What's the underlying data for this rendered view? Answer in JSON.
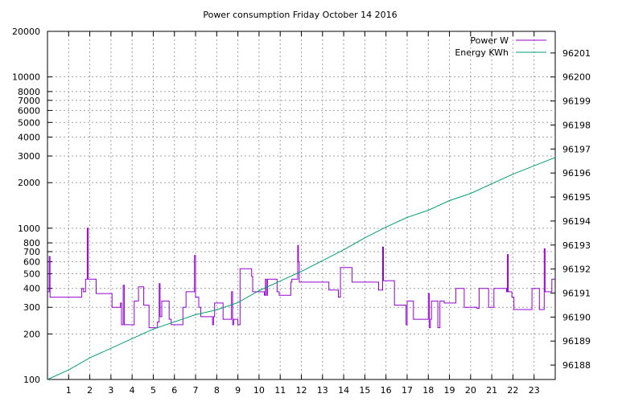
{
  "chart_data": {
    "type": "line",
    "title": "Power consumption Friday October 14 2016",
    "x_axis": {
      "range": [
        0,
        24
      ],
      "ticks": [
        1,
        2,
        3,
        4,
        5,
        6,
        7,
        8,
        9,
        10,
        11,
        12,
        13,
        14,
        15,
        16,
        17,
        18,
        19,
        20,
        21,
        22,
        23
      ],
      "grid": true
    },
    "y_axis_left": {
      "scale": "log",
      "range": [
        100,
        20000
      ],
      "ticks": [
        {
          "value": 100,
          "label": "100"
        },
        {
          "value": 200,
          "label": "200"
        },
        {
          "value": 300,
          "label": "300"
        },
        {
          "value": 400,
          "label": "400"
        },
        {
          "value": 500,
          "label": "500"
        },
        {
          "value": 600,
          "label": "600"
        },
        {
          "value": 700,
          "label": "700"
        },
        {
          "value": 800,
          "label": "800"
        },
        {
          "value": 1000,
          "label": "1000"
        },
        {
          "value": 2000,
          "label": "2000"
        },
        {
          "value": 3000,
          "label": "3000"
        },
        {
          "value": 4000,
          "label": "4000"
        },
        {
          "value": 5000,
          "label": "5000"
        },
        {
          "value": 6000,
          "label": "6000"
        },
        {
          "value": 7000,
          "label": "7000"
        },
        {
          "value": 8000,
          "label": "8000"
        },
        {
          "value": 10000,
          "label": "10000"
        },
        {
          "value": 20000,
          "label": "20000"
        }
      ],
      "grid": true
    },
    "y_axis_right": {
      "scale": "linear",
      "range": [
        96187.4,
        96201.9
      ],
      "ticks": [
        96188,
        96189,
        96190,
        96191,
        96192,
        96193,
        96194,
        96195,
        96196,
        96197,
        96198,
        96199,
        96200,
        96201
      ]
    },
    "legend_position": "top-right",
    "series": [
      {
        "name": "Power W",
        "color": "#9400d3",
        "axis": "left",
        "step": true,
        "points": [
          [
            0.0,
            380
          ],
          [
            0.08,
            650
          ],
          [
            0.12,
            350
          ],
          [
            0.25,
            350
          ],
          [
            0.95,
            350
          ],
          [
            1.55,
            350
          ],
          [
            1.62,
            400
          ],
          [
            1.7,
            380
          ],
          [
            1.8,
            460
          ],
          [
            1.88,
            1000
          ],
          [
            1.92,
            460
          ],
          [
            2.0,
            460
          ],
          [
            2.15,
            460
          ],
          [
            2.3,
            370
          ],
          [
            2.6,
            370
          ],
          [
            3.0,
            370
          ],
          [
            3.05,
            300
          ],
          [
            3.4,
            300
          ],
          [
            3.45,
            320
          ],
          [
            3.5,
            230
          ],
          [
            3.58,
            420
          ],
          [
            3.63,
            230
          ],
          [
            3.8,
            230
          ],
          [
            4.05,
            230
          ],
          [
            4.1,
            330
          ],
          [
            4.2,
            330
          ],
          [
            4.3,
            410
          ],
          [
            4.45,
            410
          ],
          [
            4.55,
            310
          ],
          [
            4.7,
            310
          ],
          [
            4.8,
            220
          ],
          [
            5.1,
            220
          ],
          [
            5.2,
            240
          ],
          [
            5.28,
            430
          ],
          [
            5.32,
            260
          ],
          [
            5.4,
            330
          ],
          [
            5.7,
            330
          ],
          [
            5.75,
            250
          ],
          [
            5.85,
            230
          ],
          [
            6.2,
            230
          ],
          [
            6.3,
            230
          ],
          [
            6.4,
            300
          ],
          [
            6.55,
            380
          ],
          [
            6.9,
            380
          ],
          [
            6.95,
            660
          ],
          [
            7.0,
            350
          ],
          [
            7.15,
            300
          ],
          [
            7.25,
            260
          ],
          [
            7.45,
            260
          ],
          [
            7.75,
            260
          ],
          [
            7.8,
            230
          ],
          [
            7.85,
            260
          ],
          [
            7.9,
            320
          ],
          [
            8.2,
            320
          ],
          [
            8.3,
            250
          ],
          [
            8.65,
            250
          ],
          [
            8.7,
            380
          ],
          [
            8.75,
            230
          ],
          [
            8.8,
            250
          ],
          [
            9.0,
            230
          ],
          [
            9.1,
            540
          ],
          [
            9.6,
            540
          ],
          [
            9.65,
            480
          ],
          [
            9.7,
            380
          ],
          [
            10.05,
            380
          ],
          [
            10.25,
            360
          ],
          [
            10.3,
            460
          ],
          [
            10.35,
            360
          ],
          [
            10.4,
            460
          ],
          [
            10.8,
            460
          ],
          [
            10.85,
            380
          ],
          [
            10.95,
            360
          ],
          [
            11.4,
            360
          ],
          [
            11.5,
            440
          ],
          [
            11.55,
            460
          ],
          [
            11.8,
            460
          ],
          [
            11.83,
            770
          ],
          [
            11.86,
            600
          ],
          [
            11.9,
            440
          ],
          [
            12.5,
            440
          ],
          [
            13.25,
            440
          ],
          [
            13.3,
            390
          ],
          [
            13.7,
            390
          ],
          [
            13.75,
            350
          ],
          [
            13.85,
            550
          ],
          [
            14.2,
            550
          ],
          [
            14.4,
            440
          ],
          [
            14.9,
            440
          ],
          [
            15.6,
            440
          ],
          [
            15.65,
            390
          ],
          [
            15.8,
            390
          ],
          [
            15.84,
            750
          ],
          [
            15.88,
            450
          ],
          [
            16.35,
            450
          ],
          [
            16.4,
            310
          ],
          [
            16.9,
            310
          ],
          [
            16.95,
            230
          ],
          [
            17.0,
            330
          ],
          [
            17.25,
            330
          ],
          [
            17.3,
            250
          ],
          [
            17.9,
            250
          ],
          [
            18.0,
            370
          ],
          [
            18.05,
            220
          ],
          [
            18.1,
            250
          ],
          [
            18.15,
            330
          ],
          [
            18.4,
            330
          ],
          [
            18.45,
            220
          ],
          [
            18.55,
            330
          ],
          [
            18.75,
            320
          ],
          [
            19.25,
            320
          ],
          [
            19.3,
            400
          ],
          [
            19.6,
            400
          ],
          [
            19.7,
            300
          ],
          [
            20.1,
            300
          ],
          [
            20.3,
            295
          ],
          [
            20.4,
            400
          ],
          [
            20.8,
            400
          ],
          [
            20.85,
            300
          ],
          [
            21.0,
            300
          ],
          [
            21.1,
            400
          ],
          [
            21.6,
            400
          ],
          [
            21.7,
            380
          ],
          [
            21.74,
            670
          ],
          [
            21.78,
            380
          ],
          [
            21.95,
            350
          ],
          [
            22.05,
            290
          ],
          [
            22.6,
            290
          ],
          [
            22.8,
            290
          ],
          [
            22.9,
            400
          ],
          [
            23.2,
            400
          ],
          [
            23.25,
            290
          ],
          [
            23.4,
            290
          ],
          [
            23.48,
            730
          ],
          [
            23.52,
            380
          ],
          [
            23.8,
            380
          ],
          [
            23.84,
            460
          ],
          [
            24.0,
            460
          ]
        ]
      },
      {
        "name": "Energy KWh",
        "color": "#009e73",
        "axis": "right",
        "step": false,
        "points": [
          [
            0.0,
            96187.4
          ],
          [
            1.0,
            96187.8
          ],
          [
            2.0,
            96188.3
          ],
          [
            3.0,
            96188.7
          ],
          [
            4.0,
            96189.1
          ],
          [
            5.0,
            96189.5
          ],
          [
            6.0,
            96189.8
          ],
          [
            7.0,
            96190.1
          ],
          [
            8.0,
            96190.3
          ],
          [
            9.0,
            96190.6
          ],
          [
            10.0,
            96191.1
          ],
          [
            11.0,
            96191.5
          ],
          [
            12.0,
            96191.9
          ],
          [
            13.0,
            96192.35
          ],
          [
            14.0,
            96192.8
          ],
          [
            15.0,
            96193.3
          ],
          [
            16.0,
            96193.75
          ],
          [
            17.0,
            96194.15
          ],
          [
            18.0,
            96194.45
          ],
          [
            19.0,
            96194.85
          ],
          [
            20.0,
            96195.15
          ],
          [
            21.0,
            96195.55
          ],
          [
            22.0,
            96195.95
          ],
          [
            23.0,
            96196.3
          ],
          [
            24.0,
            96196.65
          ]
        ]
      }
    ]
  }
}
